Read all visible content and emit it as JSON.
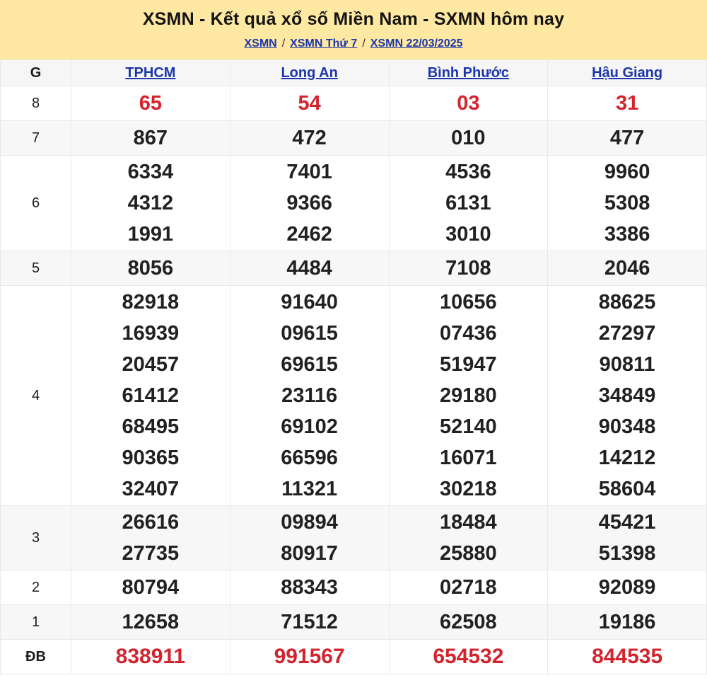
{
  "header": {
    "title": "XSMN - Kết quả xổ số Miền Nam - SXMN hôm nay",
    "breadcrumb": [
      {
        "label": "XSMN"
      },
      {
        "label": "XSMN Thứ 7"
      },
      {
        "label": "XSMN 22/03/2025"
      }
    ],
    "separator": "/"
  },
  "table": {
    "corner_label": "G",
    "columns": [
      "TPHCM",
      "Long An",
      "Bình Phước",
      "Hậu Giang"
    ],
    "rows": [
      {
        "prize": "8",
        "highlight": "red",
        "values": [
          [
            "65"
          ],
          [
            "54"
          ],
          [
            "03"
          ],
          [
            "31"
          ]
        ]
      },
      {
        "prize": "7",
        "highlight": "none",
        "values": [
          [
            "867"
          ],
          [
            "472"
          ],
          [
            "010"
          ],
          [
            "477"
          ]
        ]
      },
      {
        "prize": "6",
        "highlight": "none",
        "values": [
          [
            "6334",
            "4312",
            "1991"
          ],
          [
            "7401",
            "9366",
            "2462"
          ],
          [
            "4536",
            "6131",
            "3010"
          ],
          [
            "9960",
            "5308",
            "3386"
          ]
        ]
      },
      {
        "prize": "5",
        "highlight": "none",
        "values": [
          [
            "8056"
          ],
          [
            "4484"
          ],
          [
            "7108"
          ],
          [
            "2046"
          ]
        ]
      },
      {
        "prize": "4",
        "highlight": "none",
        "values": [
          [
            "82918",
            "16939",
            "20457",
            "61412",
            "68495",
            "90365",
            "32407"
          ],
          [
            "91640",
            "09615",
            "69615",
            "23116",
            "69102",
            "66596",
            "11321"
          ],
          [
            "10656",
            "07436",
            "51947",
            "29180",
            "52140",
            "16071",
            "30218"
          ],
          [
            "88625",
            "27297",
            "90811",
            "34849",
            "90348",
            "14212",
            "58604"
          ]
        ]
      },
      {
        "prize": "3",
        "highlight": "none",
        "values": [
          [
            "26616",
            "27735"
          ],
          [
            "09894",
            "80917"
          ],
          [
            "18484",
            "25880"
          ],
          [
            "45421",
            "51398"
          ]
        ]
      },
      {
        "prize": "2",
        "highlight": "none",
        "values": [
          [
            "80794"
          ],
          [
            "88343"
          ],
          [
            "02718"
          ],
          [
            "92089"
          ]
        ]
      },
      {
        "prize": "1",
        "highlight": "none",
        "values": [
          [
            "12658"
          ],
          [
            "71512"
          ],
          [
            "62508"
          ],
          [
            "19186"
          ]
        ]
      },
      {
        "prize": "ĐB",
        "highlight": "red",
        "values": [
          [
            "838911"
          ],
          [
            "991567"
          ],
          [
            "654532"
          ],
          [
            "844535"
          ]
        ]
      }
    ]
  },
  "colors": {
    "banner_bg": "#ffe9a2",
    "link_blue": "#1c36ab",
    "highlight_red": "#d3242e",
    "stripe_gray": "#f7f7f7",
    "border_gray": "#e9e9e9"
  }
}
